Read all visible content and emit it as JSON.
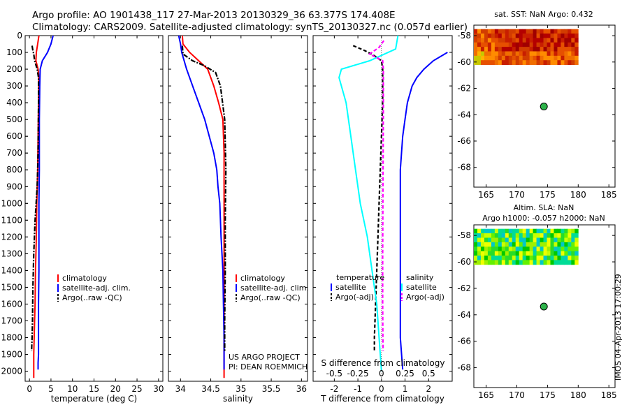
{
  "title": {
    "line1": "Argo profile: AO 1901438_117 27-Mar-2013 20130329_36 63.377S 174.408E",
    "line2": "Climatology: CARS2009. Satellite-adjusted climatology: synTS_20130327.nc (0.057d earlier)"
  },
  "side_label": "IMOS 04-Apr-2013 17:00:29",
  "colors": {
    "climatology": "#ff0000",
    "satellite": "#0000ff",
    "argo": "#000000",
    "sat_cyan": "#00ffff",
    "argo_adj_magenta": "#ff00ff",
    "argo_marker": "#2db34a"
  },
  "chart_data": [
    {
      "id": "temp",
      "type": "line",
      "xlabel": "temperature (deg C)",
      "ylabel": "",
      "xlim": [
        -1,
        31
      ],
      "ylim": [
        2060,
        0
      ],
      "xticks": [
        "0",
        "5",
        "10",
        "15",
        "20",
        "25",
        "30"
      ],
      "yticks": [
        "0",
        "100",
        "200",
        "300",
        "400",
        "500",
        "600",
        "700",
        "800",
        "900",
        "1000",
        "1100",
        "1200",
        "1300",
        "1400",
        "1500",
        "1600",
        "1700",
        "1800",
        "1900",
        "2000"
      ],
      "legend": [
        "climatology",
        "satellite-adj. clim.",
        "Argo(..raw -QC)"
      ],
      "series": [
        {
          "name": "climatology",
          "color": "#ff0000",
          "x": [
            2.2,
            1.9,
            1.6,
            1.5,
            2.0,
            2.2,
            2.1,
            2.0,
            1.9,
            1.7,
            1.6,
            1.4,
            1.3,
            1.2,
            1.1,
            1.0,
            1.0
          ],
          "y": [
            0,
            50,
            100,
            150,
            200,
            250,
            400,
            600,
            800,
            1000,
            1200,
            1400,
            1600,
            1700,
            1800,
            1900,
            2040
          ]
        },
        {
          "name": "satellite-adj. clim.",
          "color": "#0000ff",
          "x": [
            5.5,
            5.0,
            4.2,
            3.0,
            2.5,
            2.4,
            2.3,
            2.3,
            2.2,
            2.2,
            2.2,
            2.1,
            2.1,
            2.1,
            2.0,
            2.0
          ],
          "y": [
            0,
            50,
            100,
            150,
            200,
            300,
            500,
            800,
            1000,
            1200,
            1400,
            1600,
            1800,
            1900,
            1950,
            1990
          ]
        },
        {
          "name": "Argo(..raw -QC)",
          "color": "#000000",
          "x": [
            0.6,
            0.8,
            1.0,
            1.2,
            1.8,
            2.1,
            2.1,
            2.0,
            1.8,
            1.3,
            1.0,
            0.8,
            0.7,
            0.6,
            0.5
          ],
          "y": [
            60,
            90,
            110,
            150,
            200,
            250,
            400,
            700,
            900,
            1100,
            1300,
            1500,
            1700,
            1800,
            1880
          ]
        }
      ]
    },
    {
      "id": "sal",
      "type": "line",
      "xlabel": "salinity",
      "ylabel": "",
      "xlim": [
        33.8,
        36.1
      ],
      "ylim": [
        2060,
        0
      ],
      "xticks": [
        "34",
        "34.5",
        "35",
        "35.5",
        "36"
      ],
      "legend": [
        "climatology",
        "satellite-adj. clim.",
        "Argo(..raw -QC)"
      ],
      "annotations": [
        "US ARGO PROJECT",
        "PI: DEAN ROEMMICH"
      ],
      "series": [
        {
          "name": "climatology",
          "color": "#ff0000",
          "x": [
            34.03,
            34.04,
            34.15,
            34.3,
            34.45,
            34.55,
            34.63,
            34.7,
            34.72,
            34.72,
            34.72,
            34.72,
            34.72,
            34.72,
            34.72
          ],
          "y": [
            0,
            50,
            100,
            150,
            200,
            300,
            400,
            500,
            700,
            900,
            1200,
            1500,
            1800,
            1900,
            2040
          ]
        },
        {
          "name": "satellite-adj. clim.",
          "color": "#0000ff",
          "x": [
            33.97,
            34.0,
            34.02,
            34.1,
            34.2,
            34.3,
            34.4,
            34.55,
            34.6,
            34.62,
            34.65,
            34.67,
            34.7,
            34.71,
            34.72,
            34.72
          ],
          "y": [
            0,
            50,
            100,
            200,
            300,
            400,
            500,
            700,
            800,
            900,
            1000,
            1200,
            1400,
            1600,
            1800,
            1990
          ]
        },
        {
          "name": "Argo(..raw -QC)",
          "color": "#000000",
          "x": [
            34.03,
            34.04,
            34.2,
            34.4,
            34.58,
            34.66,
            34.73,
            34.75,
            34.74,
            34.74,
            34.73,
            34.73
          ],
          "y": [
            60,
            110,
            150,
            180,
            220,
            300,
            500,
            800,
            1100,
            1400,
            1700,
            1880
          ]
        }
      ]
    },
    {
      "id": "diff",
      "type": "line",
      "xlabel": "T difference from climatology",
      "xlabel_top": "S difference from climatology",
      "xlim": [
        -2.9,
        3.0
      ],
      "ylim": [
        2060,
        0
      ],
      "xticks": [
        "-2",
        "-1",
        "0",
        "1",
        "2"
      ],
      "xticks_top": [
        "-0.5",
        "-0.25",
        "0",
        "0.25",
        "0.5"
      ],
      "legend_headers": [
        "temperature",
        "salinity"
      ],
      "legend": [
        "satellite",
        "Argo(-adj)",
        "satellite",
        "Argo(-adj)"
      ],
      "series": [
        {
          "name": "temperature satellite",
          "color": "#0000ff",
          "x": [
            2.8,
            2.2,
            1.8,
            1.5,
            1.3,
            1.1,
            1.0,
            0.9,
            0.85,
            0.8,
            0.8,
            0.8,
            0.8,
            0.8,
            0.9
          ],
          "y": [
            100,
            150,
            200,
            250,
            300,
            400,
            500,
            600,
            700,
            800,
            1000,
            1300,
            1600,
            1800,
            1990
          ]
        },
        {
          "name": "temperature Argo(-adj)",
          "color": "#000000",
          "x": [
            -1.2,
            -0.7,
            -0.3,
            0.0,
            0.05,
            0.05,
            0.0,
            -0.05,
            -0.1,
            -0.15,
            -0.2,
            -0.25,
            -0.3,
            -0.3
          ],
          "y": [
            60,
            90,
            120,
            150,
            200,
            400,
            600,
            800,
            1000,
            1200,
            1400,
            1600,
            1800,
            1880
          ]
        },
        {
          "name": "salinity satellite",
          "color": "#00ffff",
          "x": [
            0.7,
            0.6,
            -0.5,
            -1.7,
            -1.8,
            -1.5,
            -1.3,
            -1.1,
            -0.9,
            -0.6,
            -0.4,
            -0.2,
            -0.1,
            0.0
          ],
          "y": [
            0,
            80,
            150,
            200,
            250,
            400,
            600,
            800,
            1000,
            1200,
            1400,
            1600,
            1800,
            2000
          ]
        },
        {
          "name": "salinity Argo(-adj)",
          "color": "#ff00ff",
          "x": [
            0.1,
            -0.1,
            -0.5,
            0.05,
            0.08,
            0.08,
            0.07,
            0.06,
            0.05,
            0.05,
            0.06,
            0.07
          ],
          "y": [
            30,
            70,
            110,
            150,
            200,
            400,
            700,
            1000,
            1300,
            1600,
            1800,
            1880
          ]
        }
      ]
    },
    {
      "id": "sst_map",
      "type": "heatmap",
      "title": "sat. SST: NaN Argo: 0.432",
      "xlim": [
        163,
        186
      ],
      "ylim": [
        -69.5,
        -57.2
      ],
      "xticks": [
        "165",
        "170",
        "175",
        "180",
        "185"
      ],
      "yticks": [
        "-58",
        "-60",
        "-62",
        "-64",
        "-66",
        "-68"
      ],
      "data_extent": {
        "lon": [
          163,
          180
        ],
        "lat": [
          -60.2,
          -57.5
        ]
      },
      "argo_point": {
        "lon": 174.408,
        "lat": -63.377
      }
    },
    {
      "id": "sla_map",
      "type": "heatmap",
      "title": "Altim. SLA: NaN",
      "subtitle": "Argo h1000: -0.057 h2000: NaN",
      "xlim": [
        163,
        186
      ],
      "ylim": [
        -69.5,
        -57.2
      ],
      "xticks": [
        "165",
        "170",
        "175",
        "180",
        "185"
      ],
      "yticks": [
        "-58",
        "-60",
        "-62",
        "-64",
        "-66",
        "-68"
      ],
      "data_extent": {
        "lon": [
          163,
          180
        ],
        "lat": [
          -60.2,
          -57.5
        ]
      },
      "argo_point": {
        "lon": 174.408,
        "lat": -63.377
      }
    }
  ]
}
